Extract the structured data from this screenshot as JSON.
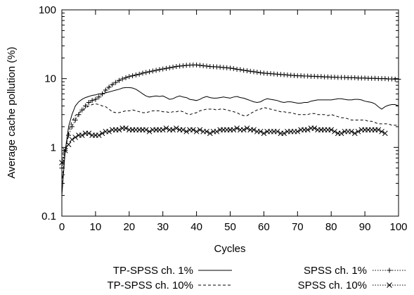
{
  "chart_data": {
    "type": "line",
    "xlabel": "Cycles",
    "ylabel": "Average cache pollution (%)",
    "xlim": [
      0,
      100
    ],
    "ylim": [
      0.1,
      100
    ],
    "yscale": "log",
    "x_ticks": [
      "0",
      "10",
      "20",
      "30",
      "40",
      "50",
      "60",
      "70",
      "80",
      "90",
      "100"
    ],
    "y_ticks": [
      "0.1",
      "1",
      "10",
      "100"
    ],
    "grid": false,
    "legend_position": "bottom",
    "series": [
      {
        "name": "TP-SPSS ch. 1%",
        "style": "solid",
        "marker": "none",
        "x": [
          0,
          1,
          2,
          3,
          4,
          5,
          6,
          7,
          8,
          9,
          10,
          11,
          12,
          13,
          14,
          15,
          16,
          17,
          18,
          19,
          20,
          21,
          22,
          23,
          24,
          25,
          26,
          27,
          28,
          29,
          30,
          31,
          32,
          33,
          34,
          35,
          36,
          37,
          38,
          39,
          40,
          41,
          42,
          43,
          44,
          45,
          46,
          47,
          48,
          49,
          50,
          51,
          52,
          53,
          54,
          55,
          56,
          57,
          58,
          59,
          60,
          61,
          62,
          63,
          64,
          65,
          66,
          67,
          68,
          69,
          70,
          71,
          72,
          73,
          74,
          75,
          76,
          77,
          78,
          79,
          80,
          81,
          82,
          83,
          84,
          85,
          86,
          87,
          88,
          89,
          90,
          91,
          92,
          93,
          94,
          95,
          96,
          97,
          98,
          99,
          100
        ],
        "y": [
          0.2,
          0.9,
          2.0,
          3.0,
          4.0,
          4.6,
          5.0,
          5.3,
          5.5,
          5.7,
          5.8,
          6.0,
          6.0,
          6.2,
          6.4,
          6.6,
          6.8,
          7.0,
          7.3,
          7.4,
          7.4,
          7.3,
          7.0,
          6.5,
          6.0,
          5.6,
          5.4,
          5.5,
          5.6,
          5.5,
          5.6,
          5.3,
          5.0,
          5.1,
          5.4,
          5.6,
          5.4,
          5.3,
          5.0,
          4.9,
          4.8,
          5.0,
          5.3,
          5.5,
          5.3,
          5.2,
          5.2,
          5.3,
          5.4,
          5.3,
          5.2,
          5.4,
          5.5,
          5.3,
          5.2,
          5.0,
          4.8,
          4.6,
          4.5,
          4.6,
          4.9,
          5.1,
          5.0,
          4.9,
          4.8,
          4.6,
          4.5,
          4.6,
          4.6,
          4.5,
          4.4,
          4.4,
          4.5,
          4.5,
          4.7,
          4.8,
          4.9,
          4.9,
          4.9,
          4.9,
          4.9,
          5.0,
          5.1,
          5.1,
          5.0,
          4.9,
          4.9,
          5.0,
          5.0,
          4.9,
          4.7,
          4.6,
          4.5,
          4.3,
          3.9,
          3.6,
          3.9,
          4.1,
          4.2,
          4.2,
          4.0
        ]
      },
      {
        "name": "TP-SPSS ch. 10%",
        "style": "dashed",
        "marker": "none",
        "x": [
          0,
          1,
          2,
          3,
          4,
          5,
          6,
          7,
          8,
          9,
          10,
          11,
          12,
          13,
          14,
          15,
          16,
          17,
          18,
          19,
          20,
          21,
          22,
          23,
          24,
          25,
          26,
          27,
          28,
          29,
          30,
          31,
          32,
          33,
          34,
          35,
          36,
          37,
          38,
          39,
          40,
          41,
          42,
          43,
          44,
          45,
          46,
          47,
          48,
          49,
          50,
          51,
          52,
          53,
          54,
          55,
          56,
          57,
          58,
          59,
          60,
          61,
          62,
          63,
          64,
          65,
          66,
          67,
          68,
          69,
          70,
          71,
          72,
          73,
          74,
          75,
          76,
          77,
          78,
          79,
          80,
          81,
          82,
          83,
          84,
          85,
          86,
          87,
          88,
          89,
          90,
          91,
          92,
          93,
          94,
          95,
          96,
          97,
          98,
          99,
          100
        ],
        "y": [
          0.3,
          0.9,
          1.7,
          2.4,
          2.9,
          3.2,
          3.4,
          3.7,
          4.0,
          4.2,
          4.3,
          4.2,
          4.0,
          3.9,
          3.6,
          3.3,
          3.2,
          3.2,
          3.3,
          3.4,
          3.4,
          3.5,
          3.4,
          3.3,
          3.2,
          3.2,
          3.3,
          3.4,
          3.4,
          3.4,
          3.3,
          3.3,
          3.2,
          3.3,
          3.3,
          3.4,
          3.3,
          3.1,
          3.0,
          3.1,
          3.2,
          3.4,
          3.5,
          3.6,
          3.6,
          3.6,
          3.5,
          3.6,
          3.6,
          3.5,
          3.4,
          3.3,
          3.2,
          3.0,
          2.9,
          2.9,
          3.1,
          3.3,
          3.5,
          3.6,
          3.8,
          3.7,
          3.6,
          3.5,
          3.4,
          3.3,
          3.3,
          3.2,
          3.2,
          3.1,
          3.0,
          3.0,
          3.0,
          3.0,
          3.1,
          3.1,
          3.0,
          3.0,
          3.0,
          2.9,
          3.0,
          2.9,
          2.8,
          2.7,
          2.7,
          2.6,
          2.5,
          2.5,
          2.5,
          2.5,
          2.5,
          2.4,
          2.4,
          2.3,
          2.2,
          2.2,
          2.2,
          2.2,
          2.1,
          2.1,
          2.1
        ]
      },
      {
        "name": "SPSS ch. 1%",
        "style": "dotted",
        "marker": "plus",
        "x": [
          0,
          1,
          2,
          3,
          4,
          5,
          6,
          7,
          8,
          9,
          10,
          11,
          12,
          13,
          14,
          15,
          16,
          17,
          18,
          19,
          20,
          21,
          22,
          23,
          24,
          25,
          26,
          27,
          28,
          29,
          30,
          31,
          32,
          33,
          34,
          35,
          36,
          37,
          38,
          39,
          40,
          41,
          42,
          43,
          44,
          45,
          46,
          47,
          48,
          49,
          50,
          51,
          52,
          53,
          54,
          55,
          56,
          57,
          58,
          59,
          60,
          61,
          62,
          63,
          64,
          65,
          66,
          67,
          68,
          69,
          70,
          71,
          72,
          73,
          74,
          75,
          76,
          77,
          78,
          79,
          80,
          81,
          82,
          83,
          84,
          85,
          86,
          87,
          88,
          89,
          90,
          91,
          92,
          93,
          94,
          95,
          96,
          97,
          98,
          99,
          100
        ],
        "y": [
          0.5,
          0.9,
          1.5,
          2.0,
          2.5,
          3.0,
          3.5,
          4.0,
          4.5,
          4.8,
          5.0,
          5.4,
          6.0,
          6.8,
          7.5,
          8.2,
          8.8,
          9.4,
          9.9,
          10.3,
          10.7,
          11.0,
          11.3,
          11.6,
          12.0,
          12.3,
          12.6,
          12.9,
          13.2,
          13.5,
          13.8,
          14.1,
          14.4,
          14.7,
          15.0,
          15.2,
          15.4,
          15.6,
          15.7,
          15.8,
          15.8,
          15.6,
          15.4,
          15.2,
          15.0,
          14.9,
          14.8,
          14.7,
          14.5,
          14.4,
          14.2,
          14.0,
          13.7,
          13.5,
          13.2,
          13.0,
          12.8,
          12.6,
          12.4,
          12.2,
          12.0,
          11.9,
          11.8,
          11.7,
          11.6,
          11.5,
          11.4,
          11.3,
          11.2,
          11.1,
          11.0,
          11.0,
          10.9,
          10.9,
          10.8,
          10.8,
          10.7,
          10.7,
          10.6,
          10.6,
          10.5,
          10.5,
          10.4,
          10.4,
          10.4,
          10.3,
          10.3,
          10.3,
          10.2,
          10.2,
          10.2,
          10.1,
          10.1,
          10.1,
          10.0,
          10.0,
          10.0,
          9.9,
          9.9,
          9.8,
          9.8
        ]
      },
      {
        "name": "SPSS ch. 10%",
        "style": "dotted",
        "marker": "cross",
        "x": [
          0,
          1,
          2,
          3,
          4,
          5,
          6,
          7,
          8,
          9,
          10,
          11,
          12,
          13,
          14,
          15,
          16,
          17,
          18,
          19,
          20,
          21,
          22,
          23,
          24,
          25,
          26,
          27,
          28,
          29,
          30,
          31,
          32,
          33,
          34,
          35,
          36,
          37,
          38,
          39,
          40,
          41,
          42,
          43,
          44,
          45,
          46,
          47,
          48,
          49,
          50,
          51,
          52,
          53,
          54,
          55,
          56,
          57,
          58,
          59,
          60,
          61,
          62,
          63,
          64,
          65,
          66,
          67,
          68,
          69,
          70,
          71,
          72,
          73,
          74,
          75,
          76,
          77,
          78,
          79,
          80,
          81,
          82,
          83,
          84,
          85,
          86,
          87,
          88,
          89,
          90,
          91,
          92,
          93,
          94,
          95,
          96
        ],
        "y": [
          0.6,
          0.9,
          1.1,
          1.3,
          1.4,
          1.5,
          1.5,
          1.6,
          1.6,
          1.5,
          1.5,
          1.5,
          1.6,
          1.7,
          1.7,
          1.8,
          1.8,
          1.8,
          1.9,
          1.9,
          1.8,
          1.8,
          1.8,
          1.8,
          1.8,
          1.8,
          1.7,
          1.8,
          1.8,
          1.8,
          1.8,
          1.9,
          1.8,
          1.8,
          1.9,
          1.8,
          1.8,
          1.7,
          1.8,
          1.8,
          1.7,
          1.8,
          1.7,
          1.7,
          1.6,
          1.7,
          1.7,
          1.8,
          1.8,
          1.8,
          1.8,
          1.8,
          1.9,
          1.8,
          1.8,
          1.9,
          1.8,
          1.8,
          1.7,
          1.7,
          1.6,
          1.7,
          1.7,
          1.7,
          1.7,
          1.6,
          1.6,
          1.7,
          1.7,
          1.7,
          1.7,
          1.8,
          1.8,
          1.8,
          1.9,
          1.9,
          1.8,
          1.8,
          1.8,
          1.8,
          1.8,
          1.7,
          1.6,
          1.6,
          1.7,
          1.7,
          1.7,
          1.6,
          1.7,
          1.8,
          1.8,
          1.8,
          1.8,
          1.8,
          1.8,
          1.7,
          1.6
        ]
      }
    ]
  }
}
